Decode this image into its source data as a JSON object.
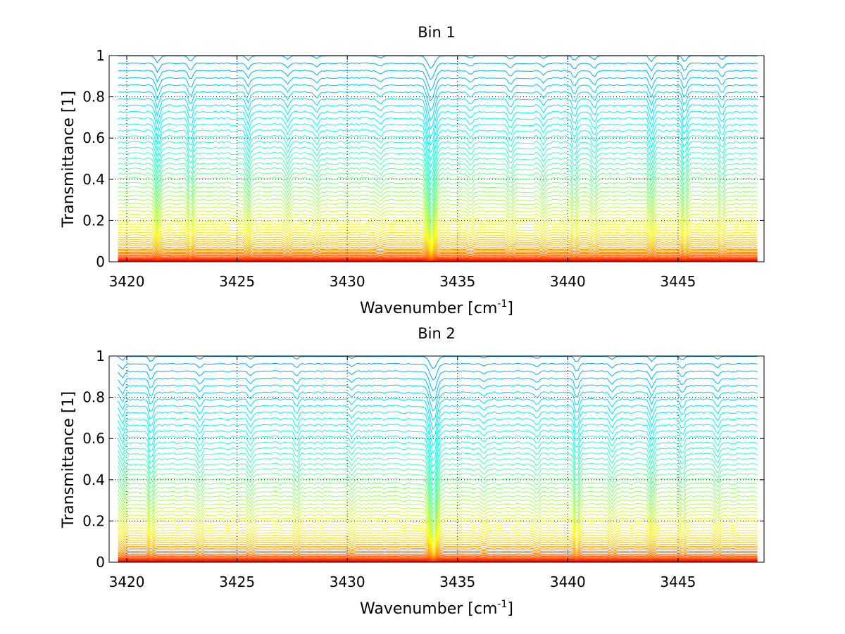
{
  "chart_data": [
    {
      "type": "line",
      "title": "Bin 1",
      "xlabel": "Wavenumber [cm",
      "xlabel_superscript": "-1",
      "xlabel_suffix": "]",
      "ylabel": "Transmittance [1]",
      "xlim": [
        3419.2,
        3448.9
      ],
      "ylim": [
        0,
        1
      ],
      "xticks": [
        3420,
        3425,
        3430,
        3435,
        3440,
        3445
      ],
      "xtick_labels": [
        "3420",
        "3425",
        "3430",
        "3435",
        "3440",
        "3445"
      ],
      "yticks": [
        0,
        0.2,
        0.4,
        0.6,
        0.8,
        1
      ],
      "ytick_labels": [
        "0",
        "0.2",
        "0.4",
        "0.6",
        "0.8",
        "1"
      ],
      "grid": true,
      "grid_style": "dotted",
      "colormap": "jet",
      "n_series": 60,
      "absorption_lines": [
        {
          "x": 3421.4,
          "depth": 0.55
        },
        {
          "x": 3422.9,
          "depth": 0.45
        },
        {
          "x": 3425.5,
          "depth": 0.35
        },
        {
          "x": 3427.3,
          "depth": 0.25
        },
        {
          "x": 3428.6,
          "depth": 0.2
        },
        {
          "x": 3431.5,
          "depth": 0.18
        },
        {
          "x": 3433.8,
          "depth": 1.0
        },
        {
          "x": 3435.6,
          "depth": 0.2
        },
        {
          "x": 3437.4,
          "depth": 0.3
        },
        {
          "x": 3438.9,
          "depth": 0.25
        },
        {
          "x": 3440.3,
          "depth": 0.35
        },
        {
          "x": 3441.2,
          "depth": 0.3
        },
        {
          "x": 3443.8,
          "depth": 0.45
        },
        {
          "x": 3445.3,
          "depth": 0.5
        },
        {
          "x": 3447.0,
          "depth": 0.3
        }
      ]
    },
    {
      "type": "line",
      "title": "Bin 2",
      "xlabel": "Wavenumber [cm",
      "xlabel_superscript": "-1",
      "xlabel_suffix": "]",
      "ylabel": "Transmittance [1]",
      "xlim": [
        3419.2,
        3448.9
      ],
      "ylim": [
        0,
        1
      ],
      "xticks": [
        3420,
        3425,
        3430,
        3435,
        3440,
        3445
      ],
      "xtick_labels": [
        "3420",
        "3425",
        "3430",
        "3435",
        "3440",
        "3445"
      ],
      "yticks": [
        0,
        0.2,
        0.4,
        0.6,
        0.8,
        1
      ],
      "ytick_labels": [
        "0",
        "0.2",
        "0.4",
        "0.6",
        "0.8",
        "1"
      ],
      "grid": true,
      "grid_style": "dotted",
      "colormap": "jet",
      "n_series": 60,
      "absorption_lines": [
        {
          "x": 3419.8,
          "depth": 0.35
        },
        {
          "x": 3421.1,
          "depth": 0.45
        },
        {
          "x": 3423.3,
          "depth": 0.25
        },
        {
          "x": 3425.6,
          "depth": 0.25
        },
        {
          "x": 3427.7,
          "depth": 0.25
        },
        {
          "x": 3430.2,
          "depth": 0.15
        },
        {
          "x": 3433.9,
          "depth": 1.0
        },
        {
          "x": 3436.2,
          "depth": 0.15
        },
        {
          "x": 3438.6,
          "depth": 0.2
        },
        {
          "x": 3440.4,
          "depth": 0.5
        },
        {
          "x": 3442.0,
          "depth": 0.25
        },
        {
          "x": 3443.8,
          "depth": 0.4
        },
        {
          "x": 3445.2,
          "depth": 0.3
        },
        {
          "x": 3446.8,
          "depth": 0.25
        }
      ]
    }
  ]
}
